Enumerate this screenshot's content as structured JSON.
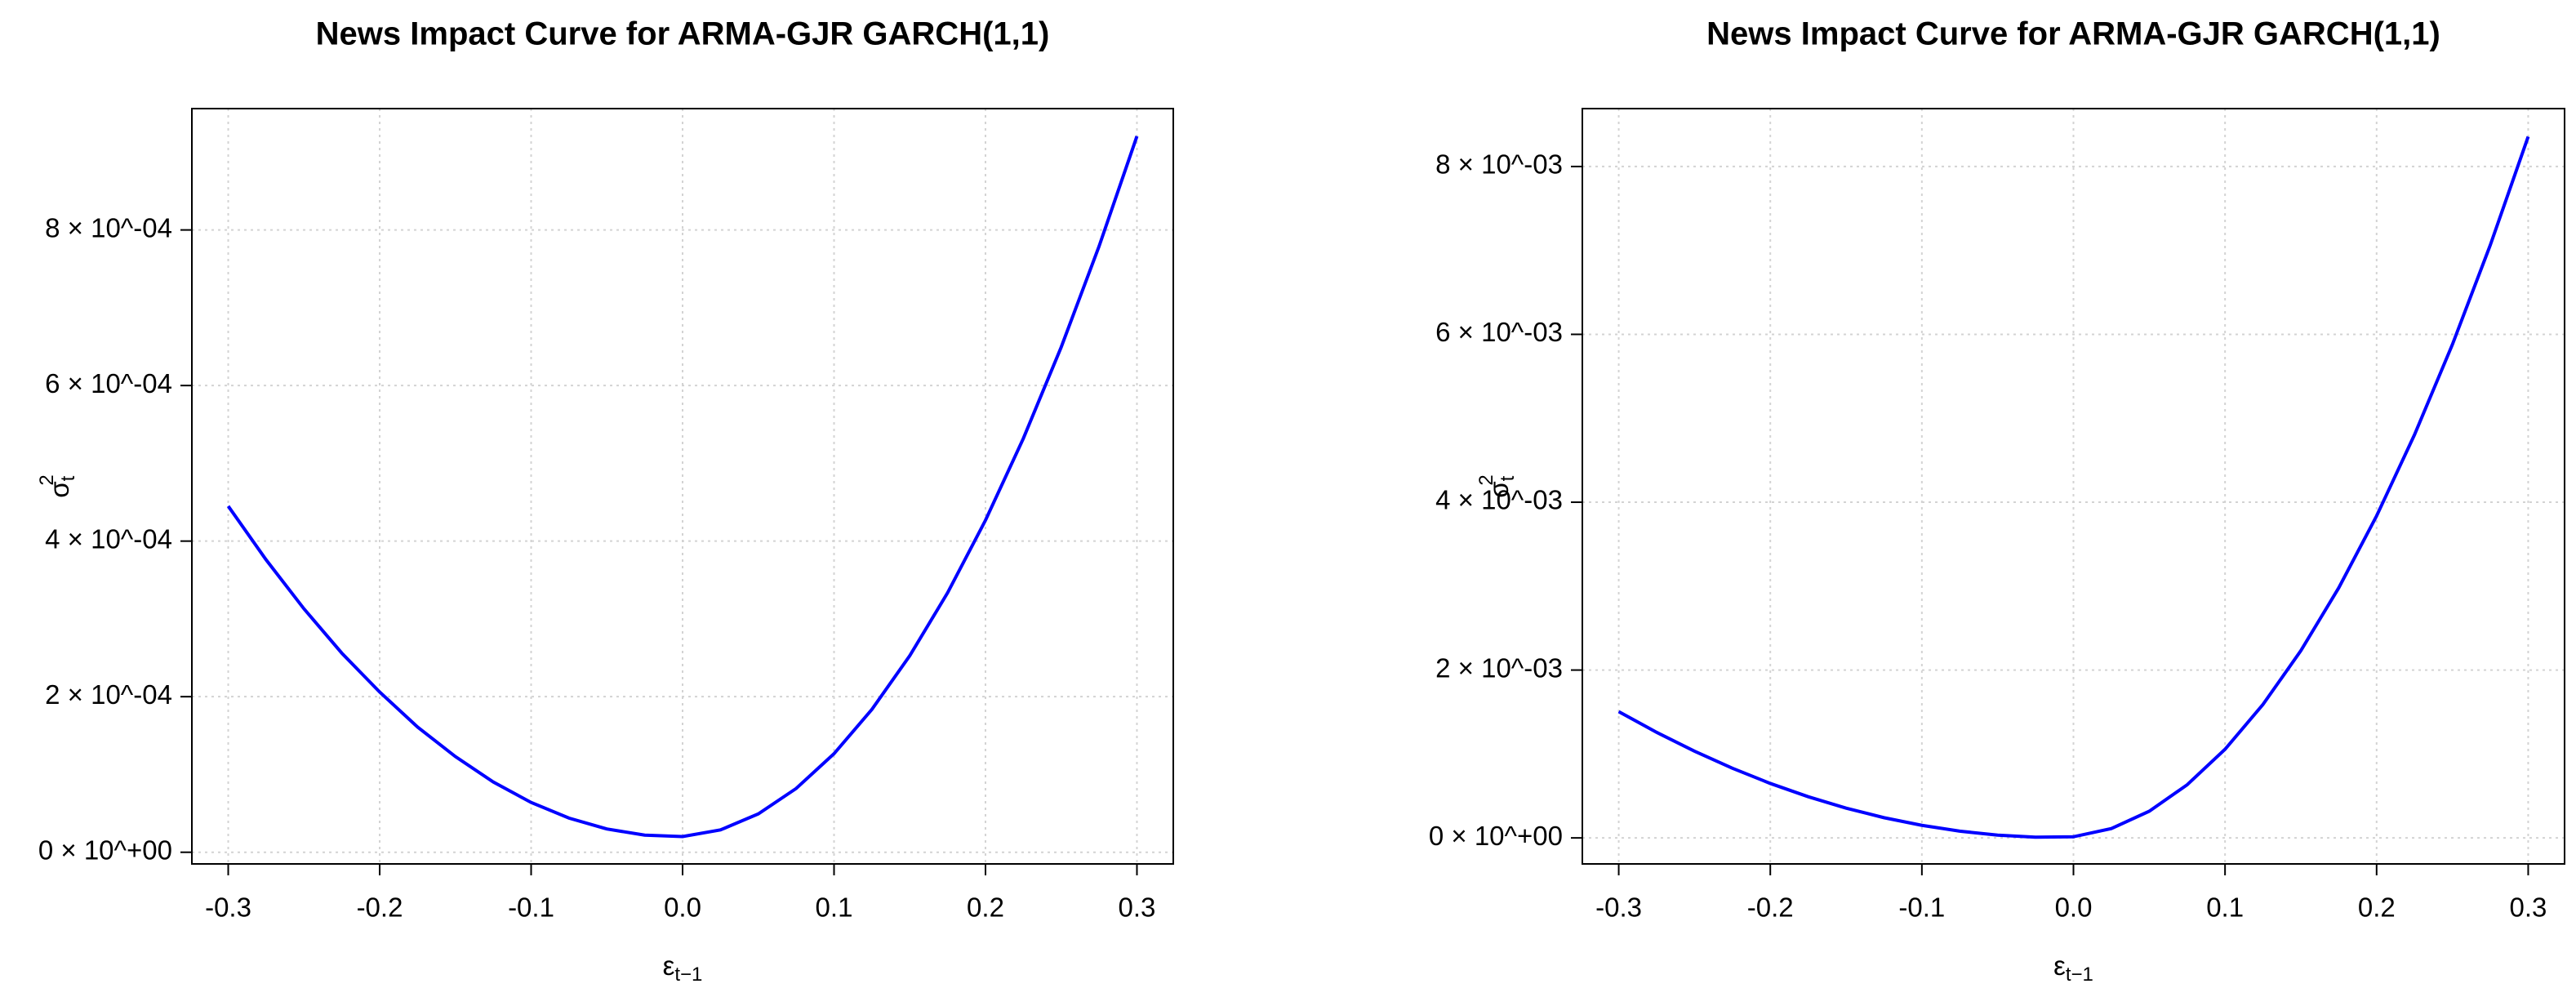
{
  "chart_data": [
    {
      "type": "line",
      "title": "News Impact Curve for ARMA-GJR GARCH(1,1)",
      "xlabel": {
        "symbol": "ε",
        "subscript": "t−1"
      },
      "ylabel": {
        "symbol": "σ",
        "superscript": "2",
        "subscript": "t"
      },
      "x": [
        -0.3,
        -0.275,
        -0.25,
        -0.225,
        -0.2,
        -0.175,
        -0.15,
        -0.125,
        -0.1,
        -0.075,
        -0.05,
        -0.025,
        0,
        0.025,
        0.05,
        0.075,
        0.1,
        0.125,
        0.15,
        0.175,
        0.2,
        0.225,
        0.25,
        0.275,
        0.3
      ],
      "series": [
        {
          "color": "#0000ff",
          "values": [
            0.000445,
            0.000376,
            0.000313,
            0.000256,
            0.000206,
            0.000161,
            0.000123,
            9.03e-05,
            6.4e-05,
            4.39e-05,
            2.99e-05,
            2.2e-05,
            2.02e-05,
            2.87e-05,
            4.93e-05,
            8.2e-05,
            0.0001267,
            0.0001836,
            0.0002526,
            0.0003336,
            0.0004268,
            0.000532,
            0.0006494,
            0.000779,
            0.0009205
          ]
        }
      ],
      "xlim": [
        -0.324,
        0.324
      ],
      "ylim": [
        -1.5e-05,
        0.000956
      ],
      "xticks": [
        -0.3,
        -0.2,
        -0.1,
        {
          "value": 0,
          "label": "0.0"
        },
        0.1,
        0.2,
        0.3
      ],
      "yticks": [
        {
          "value": 0,
          "label": "0 × 10^+00"
        },
        {
          "value": 0.0002,
          "label": "2 × 10^-04"
        },
        {
          "value": 0.0004,
          "label": "4 × 10^-04"
        },
        {
          "value": 0.0006,
          "label": "6 × 10^-04"
        },
        {
          "value": 0.0008,
          "label": "8 × 10^-04"
        }
      ],
      "grid": true
    },
    {
      "type": "line",
      "title": "News Impact Curve for ARMA-GJR GARCH(1,1)",
      "xlabel": {
        "symbol": "ε",
        "subscript": "t−1"
      },
      "ylabel": {
        "symbol": "σ",
        "superscript": "2",
        "subscript": "t"
      },
      "x": [
        -0.3,
        -0.275,
        -0.25,
        -0.225,
        -0.2,
        -0.175,
        -0.15,
        -0.125,
        -0.1,
        -0.075,
        -0.05,
        -0.025,
        0,
        0.025,
        0.05,
        0.075,
        0.1,
        0.125,
        0.15,
        0.175,
        0.2,
        0.225,
        0.25,
        0.275,
        0.3
      ],
      "series": [
        {
          "color": "#0000ff",
          "values": [
            0.001505,
            0.001258,
            0.001033,
            0.00083,
            0.000649,
            0.000491,
            0.000355,
            0.000241,
            0.00015,
            8.04e-05,
            3.35e-05,
            9e-06,
            1.37e-05,
            0.000111,
            0.000318,
            0.000633,
            0.001056,
            0.001589,
            0.00223,
            0.002979,
            0.003837,
            0.004804,
            0.005879,
            0.007064,
            0.008356
          ]
        }
      ],
      "xlim": [
        -0.324,
        0.324
      ],
      "ylim": [
        -0.00031,
        0.00869
      ],
      "xticks": [
        -0.3,
        -0.2,
        -0.1,
        {
          "value": 0,
          "label": "0.0"
        },
        0.1,
        0.2,
        0.3
      ],
      "yticks": [
        {
          "value": 0,
          "label": "0 × 10^+00"
        },
        {
          "value": 0.002,
          "label": "2 × 10^-03"
        },
        {
          "value": 0.004,
          "label": "4 × 10^-03"
        },
        {
          "value": 0.006,
          "label": "6 × 10^-03"
        },
        {
          "value": 0.008,
          "label": "8 × 10^-03"
        }
      ],
      "grid": true
    }
  ]
}
